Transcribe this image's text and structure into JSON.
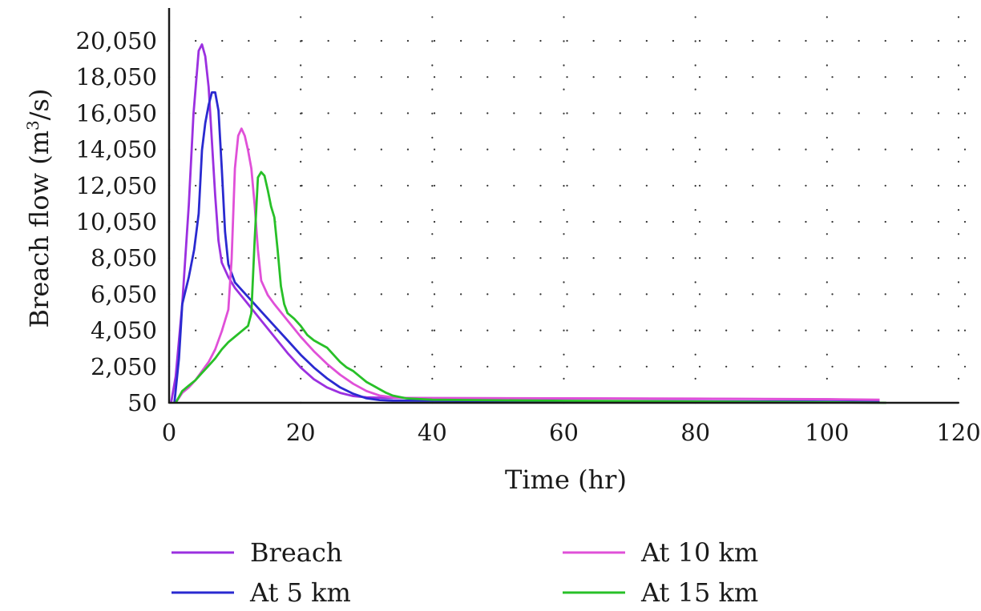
{
  "chart_data": {
    "type": "line",
    "title": "",
    "xlabel": "Time (hr)",
    "ylabel_main": "Breach flow (m",
    "ylabel_sup": "3",
    "ylabel_end": "/s)",
    "xlim": [
      0,
      120
    ],
    "ylim": [
      50,
      22050
    ],
    "xticks": [
      0,
      20,
      40,
      60,
      80,
      100,
      120
    ],
    "xtick_labels": [
      "0",
      "20",
      "40",
      "60",
      "80",
      "100",
      "120"
    ],
    "yticks": [
      50,
      2050,
      4050,
      6050,
      8050,
      10050,
      12050,
      14050,
      16050,
      18050,
      20050
    ],
    "ytick_labels": [
      "50",
      "2,050",
      "4,050",
      "6,050",
      "8,050",
      "10,050",
      "12,050",
      "14,050",
      "16,050",
      "18,050",
      "20,050"
    ],
    "grid": true,
    "legend_position": "bottom",
    "series": [
      {
        "name": "Breach",
        "color": "#9b30e0",
        "points": [
          [
            0.3,
            50
          ],
          [
            1,
            1500
          ],
          [
            2,
            5500
          ],
          [
            3,
            11000
          ],
          [
            3.7,
            16000
          ],
          [
            4.5,
            19500
          ],
          [
            5,
            19850
          ],
          [
            5.5,
            19200
          ],
          [
            6,
            17500
          ],
          [
            6.5,
            14500
          ],
          [
            7,
            11500
          ],
          [
            7.5,
            9000
          ],
          [
            8,
            7800
          ],
          [
            9,
            7000
          ],
          [
            10,
            6400
          ],
          [
            12,
            5500
          ],
          [
            14,
            4600
          ],
          [
            16,
            3700
          ],
          [
            18,
            2800
          ],
          [
            20,
            2000
          ],
          [
            22,
            1350
          ],
          [
            24,
            900
          ],
          [
            26,
            600
          ],
          [
            28,
            420
          ],
          [
            30,
            350
          ],
          [
            33,
            320
          ],
          [
            40,
            310
          ],
          [
            60,
            290
          ],
          [
            80,
            270
          ],
          [
            100,
            240
          ],
          [
            108,
            200
          ]
        ]
      },
      {
        "name": "At 5 km",
        "color": "#2a2ad0",
        "points": [
          [
            0.8,
            50
          ],
          [
            1.5,
            2500
          ],
          [
            2,
            5500
          ],
          [
            3,
            7000
          ],
          [
            3.8,
            8500
          ],
          [
            4.5,
            10500
          ],
          [
            5,
            14000
          ],
          [
            5.5,
            15500
          ],
          [
            6,
            16500
          ],
          [
            6.5,
            17200
          ],
          [
            7,
            17200
          ],
          [
            7.5,
            16200
          ],
          [
            8,
            13000
          ],
          [
            8.5,
            9500
          ],
          [
            9,
            7700
          ],
          [
            10,
            6700
          ],
          [
            12,
            5900
          ],
          [
            14,
            5100
          ],
          [
            16,
            4300
          ],
          [
            18,
            3500
          ],
          [
            20,
            2700
          ],
          [
            22,
            2000
          ],
          [
            24,
            1400
          ],
          [
            26,
            900
          ],
          [
            28,
            550
          ],
          [
            30,
            300
          ],
          [
            32,
            200
          ],
          [
            34,
            170
          ],
          [
            40,
            160
          ],
          [
            60,
            140
          ],
          [
            80,
            130
          ],
          [
            100,
            110
          ],
          [
            108,
            90
          ]
        ]
      },
      {
        "name": "At 10 km",
        "color": "#e050d8",
        "points": [
          [
            1,
            50
          ],
          [
            2,
            600
          ],
          [
            3,
            900
          ],
          [
            4,
            1300
          ],
          [
            5,
            1800
          ],
          [
            6,
            2300
          ],
          [
            7,
            3000
          ],
          [
            8,
            4000
          ],
          [
            9,
            5200
          ],
          [
            9.5,
            8000
          ],
          [
            10,
            13000
          ],
          [
            10.5,
            14800
          ],
          [
            11,
            15200
          ],
          [
            11.5,
            14800
          ],
          [
            12,
            14000
          ],
          [
            12.5,
            13000
          ],
          [
            13,
            11000
          ],
          [
            13.5,
            8500
          ],
          [
            14,
            6800
          ],
          [
            15,
            6000
          ],
          [
            16,
            5500
          ],
          [
            18,
            4600
          ],
          [
            20,
            3700
          ],
          [
            22,
            2900
          ],
          [
            24,
            2200
          ],
          [
            26,
            1600
          ],
          [
            28,
            1100
          ],
          [
            30,
            700
          ],
          [
            32,
            450
          ],
          [
            34,
            350
          ],
          [
            36,
            320
          ],
          [
            40,
            310
          ],
          [
            60,
            300
          ],
          [
            80,
            280
          ],
          [
            100,
            250
          ],
          [
            108,
            220
          ]
        ]
      },
      {
        "name": "At 15 km",
        "color": "#28c028",
        "points": [
          [
            1,
            50
          ],
          [
            2,
            700
          ],
          [
            3,
            1000
          ],
          [
            4,
            1300
          ],
          [
            5,
            1700
          ],
          [
            6,
            2100
          ],
          [
            7,
            2500
          ],
          [
            8,
            3000
          ],
          [
            9,
            3400
          ],
          [
            10,
            3700
          ],
          [
            11,
            4000
          ],
          [
            12,
            4300
          ],
          [
            12.5,
            5000
          ],
          [
            13,
            9000
          ],
          [
            13.5,
            12500
          ],
          [
            14,
            12800
          ],
          [
            14.5,
            12600
          ],
          [
            15,
            11800
          ],
          [
            15.5,
            10900
          ],
          [
            16,
            10300
          ],
          [
            16.5,
            8500
          ],
          [
            17,
            6500
          ],
          [
            17.5,
            5500
          ],
          [
            18,
            5000
          ],
          [
            19,
            4700
          ],
          [
            20,
            4300
          ],
          [
            21,
            3800
          ],
          [
            22,
            3500
          ],
          [
            23,
            3300
          ],
          [
            24,
            3100
          ],
          [
            25,
            2700
          ],
          [
            26,
            2300
          ],
          [
            27,
            2000
          ],
          [
            28,
            1800
          ],
          [
            29,
            1500
          ],
          [
            30,
            1200
          ],
          [
            31,
            1000
          ],
          [
            32,
            800
          ],
          [
            33,
            600
          ],
          [
            34,
            450
          ],
          [
            36,
            300
          ],
          [
            40,
            220
          ],
          [
            60,
            160
          ],
          [
            80,
            120
          ],
          [
            100,
            80
          ],
          [
            109,
            50
          ]
        ]
      }
    ]
  }
}
